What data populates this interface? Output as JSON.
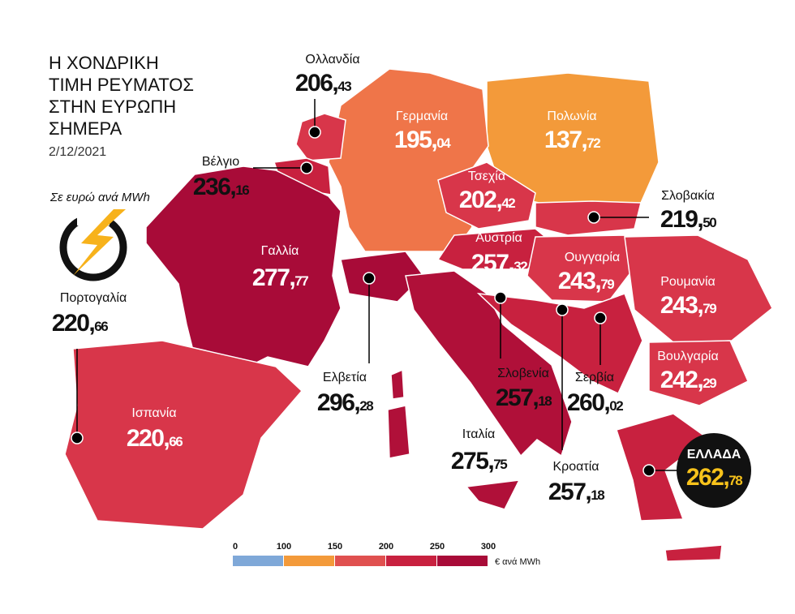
{
  "title_lines": [
    "Η ΧΟΝΔΡΙΚΗ",
    "ΤΙΜΗ ΡΕΥΜΑΤΟΣ",
    "ΣΤΗΝ ΕΥΡΩΠΗ",
    "ΣΗΜΕΡΑ"
  ],
  "date": "2/12/2021",
  "unit_note": "Σε ευρώ ανά MWh",
  "countries": [
    {
      "name": "Ολλανδία",
      "price": "206,43"
    },
    {
      "name": "Γερμανία",
      "price": "195,04"
    },
    {
      "name": "Πολωνία",
      "price": "137,72"
    },
    {
      "name": "Βέλγιο",
      "price": "236,16"
    },
    {
      "name": "Τσεχία",
      "price": "202,42"
    },
    {
      "name": "Σλοβακία",
      "price": "219,50"
    },
    {
      "name": "Γαλλία",
      "price": "277,77"
    },
    {
      "name": "Αυστρία",
      "price": "257,32"
    },
    {
      "name": "Ουγγαρία",
      "price": "243,79"
    },
    {
      "name": "Ρουμανία",
      "price": "243,79"
    },
    {
      "name": "Πορτογαλία",
      "price": "220,66"
    },
    {
      "name": "Βουλγαρία",
      "price": "242,29"
    },
    {
      "name": "Ελβετία",
      "price": "296,28"
    },
    {
      "name": "Σλοβενία",
      "price": "257,18"
    },
    {
      "name": "Σερβία",
      "price": "260,02"
    },
    {
      "name": "Ισπανία",
      "price": "220,66"
    },
    {
      "name": "Ιταλία",
      "price": "275,75"
    },
    {
      "name": "Κροατία",
      "price": "257,18"
    },
    {
      "name": "ΕΛΛΑΔΑ",
      "price": "262,78"
    }
  ],
  "legend": {
    "ticks": [
      0,
      100,
      150,
      200,
      250,
      300
    ],
    "colors": [
      "#7fa8d8",
      "#f39a3a",
      "#e0504f",
      "#c8213f",
      "#a80b38"
    ],
    "unit": "€ ανά MWh"
  }
}
